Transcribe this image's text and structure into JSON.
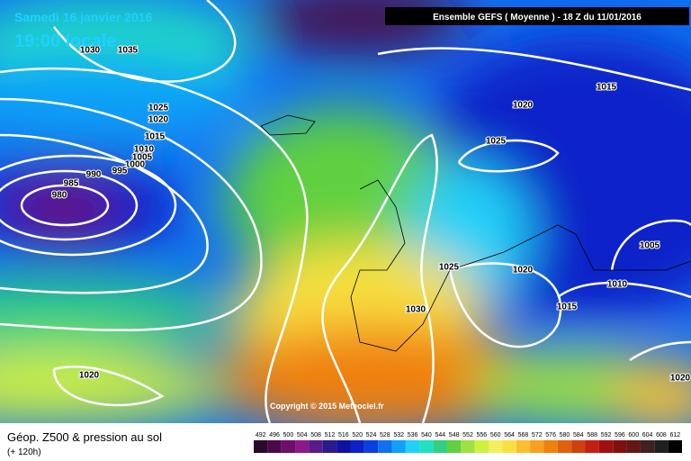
{
  "header": {
    "date": "Samedi 16 janvier 2016",
    "time": "19:00 locale",
    "model": "Ensemble GEFS  ( Moyenne )  -  18 Z du 11/01/2016"
  },
  "copyright": "Copyright © 2015 Meteociel.fr",
  "footer": {
    "title": "Géop. Z500 & pression au sol",
    "lead": "(+ 120h)"
  },
  "isobars": [
    1030,
    1035,
    1025,
    1020,
    1015,
    1010,
    1005,
    1000,
    995,
    990,
    985,
    980,
    1020,
    1015,
    1020,
    1025,
    1025,
    1020,
    1005,
    1010,
    1015,
    1030,
    1020
  ],
  "scale": {
    "values": [
      492,
      496,
      500,
      504,
      508,
      512,
      516,
      520,
      524,
      528,
      532,
      536,
      540,
      544,
      548,
      552,
      556,
      560,
      564,
      568,
      572,
      576,
      580,
      584,
      588,
      592,
      596,
      600,
      604,
      608,
      612
    ],
    "colors": [
      "#2a0a2a",
      "#4a0a4a",
      "#6a106a",
      "#8a1a8a",
      "#5a1a8a",
      "#2a1a8a",
      "#1010a0",
      "#0a20c8",
      "#0a40e0",
      "#1070f0",
      "#10a0f8",
      "#20d0f8",
      "#20e0c0",
      "#30d080",
      "#60d040",
      "#a0e040",
      "#d0f040",
      "#f0f060",
      "#f8e040",
      "#f8c030",
      "#f8a020",
      "#f08010",
      "#e06010",
      "#d04010",
      "#c02010",
      "#a01010",
      "#801010",
      "#601818",
      "#402020",
      "#202020",
      "#000000"
    ]
  }
}
